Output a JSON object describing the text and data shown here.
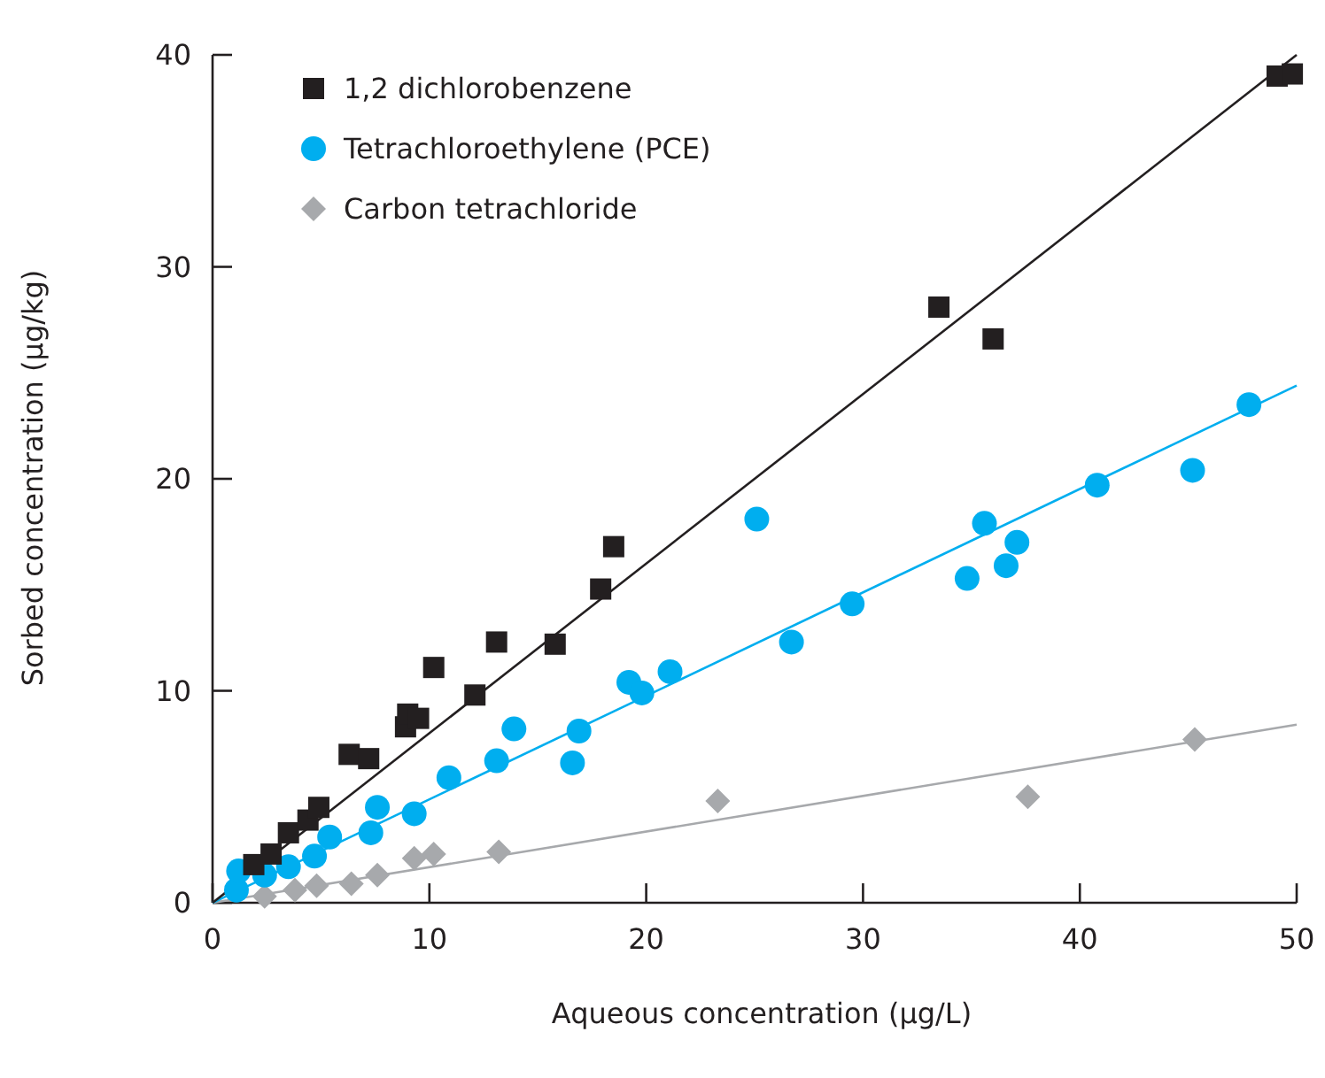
{
  "chart_data": {
    "type": "scatter",
    "xlabel": "Aqueous concentration (µg/L)",
    "ylabel": "Sorbed concentration (µg/kg)",
    "xlim": [
      0,
      50
    ],
    "ylim": [
      0,
      40
    ],
    "xticks": [
      0,
      10,
      20,
      30,
      40,
      50
    ],
    "yticks": [
      0,
      10,
      20,
      30,
      40
    ],
    "grid": false,
    "legend": "top left",
    "series": [
      {
        "name": "1,2 dichlorobenzene",
        "color": "#231f20",
        "marker": "square",
        "x": [
          1.9,
          2.7,
          3.5,
          4.4,
          4.9,
          6.3,
          7.2,
          8.9,
          9.0,
          9.5,
          10.2,
          12.1,
          13.1,
          15.8,
          17.9,
          18.5,
          33.5,
          36.0,
          49.1,
          49.8
        ],
        "values": [
          1.8,
          2.3,
          3.3,
          3.9,
          4.5,
          7.0,
          6.8,
          8.3,
          8.9,
          8.7,
          11.1,
          9.8,
          12.3,
          12.2,
          14.8,
          16.8,
          28.1,
          26.6,
          39.0,
          39.1
        ]
      },
      {
        "name": "Tetrachloroethylene (PCE)",
        "color": "#00aeef",
        "marker": "circle",
        "x": [
          1.1,
          1.2,
          2.4,
          3.5,
          4.7,
          5.4,
          7.3,
          7.6,
          9.3,
          10.9,
          13.1,
          13.9,
          16.6,
          16.9,
          19.2,
          19.8,
          21.1,
          25.1,
          26.7,
          29.5,
          34.8,
          35.6,
          36.6,
          37.1,
          40.8,
          45.2,
          47.8
        ],
        "values": [
          0.6,
          1.5,
          1.3,
          1.7,
          2.2,
          3.1,
          3.3,
          4.5,
          4.2,
          5.9,
          6.7,
          8.2,
          6.6,
          8.1,
          10.4,
          9.9,
          10.9,
          18.1,
          12.3,
          14.1,
          15.3,
          17.9,
          15.9,
          17.0,
          19.7,
          20.4,
          23.5
        ]
      },
      {
        "name": "Carbon tetrachloride",
        "color": "#a7a9ac",
        "marker": "diamond",
        "x": [
          2.4,
          3.8,
          4.8,
          6.4,
          7.6,
          9.3,
          10.2,
          13.2,
          23.3,
          37.6,
          45.3
        ],
        "values": [
          0.3,
          0.6,
          0.8,
          0.9,
          1.3,
          2.1,
          2.3,
          2.4,
          4.8,
          5.0,
          7.7
        ]
      },
      {
        "type": "line",
        "color": "#231f20",
        "x": [
          0,
          50
        ],
        "values": [
          0,
          40
        ]
      },
      {
        "type": "line",
        "color": "#00aeef",
        "x": [
          0,
          50
        ],
        "values": [
          0,
          24.4
        ]
      },
      {
        "type": "line",
        "color": "#a7a9ac",
        "x": [
          0,
          50
        ],
        "values": [
          0,
          8.4
        ]
      }
    ]
  }
}
